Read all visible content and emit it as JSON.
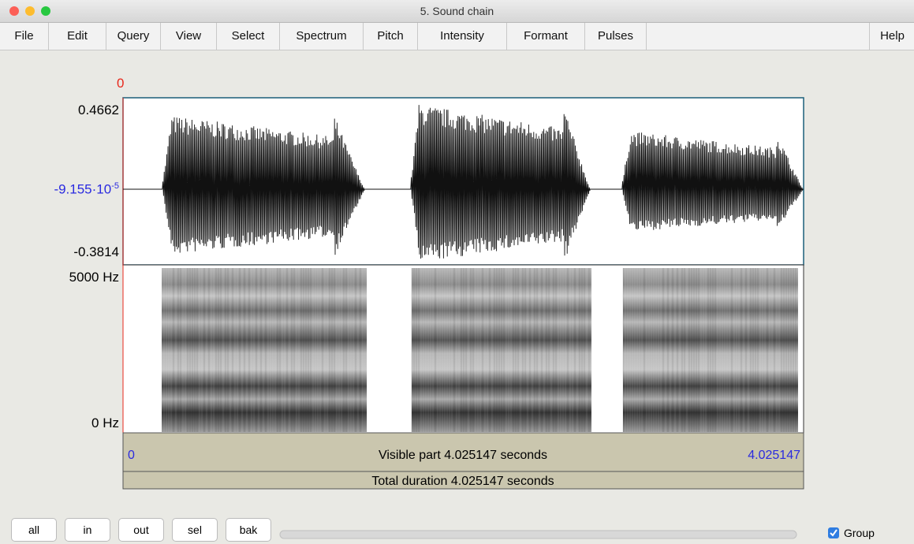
{
  "window": {
    "title": "5. Sound chain"
  },
  "menu": [
    "File",
    "Edit",
    "Query",
    "View",
    "Select",
    "Spectrum",
    "Pitch",
    "Intensity",
    "Formant",
    "Pulses",
    "Help"
  ],
  "cursor": {
    "label": "0"
  },
  "waveform": {
    "top_label": "0.4662",
    "middle_label": "-9.155·10",
    "middle_label_exponent": "-5",
    "bottom_label": "-0.3814"
  },
  "spectrogram": {
    "top_label": "5000 Hz",
    "bottom_label": "0 Hz"
  },
  "visible_bar": {
    "start": "0",
    "text": "Visible part 4.025147 seconds",
    "end": "4.025147"
  },
  "total_bar": {
    "text": "Total duration 4.025147 seconds"
  },
  "buttons": [
    "all",
    "in",
    "out",
    "sel",
    "bak"
  ],
  "group_checkbox": {
    "label": "Group"
  }
}
